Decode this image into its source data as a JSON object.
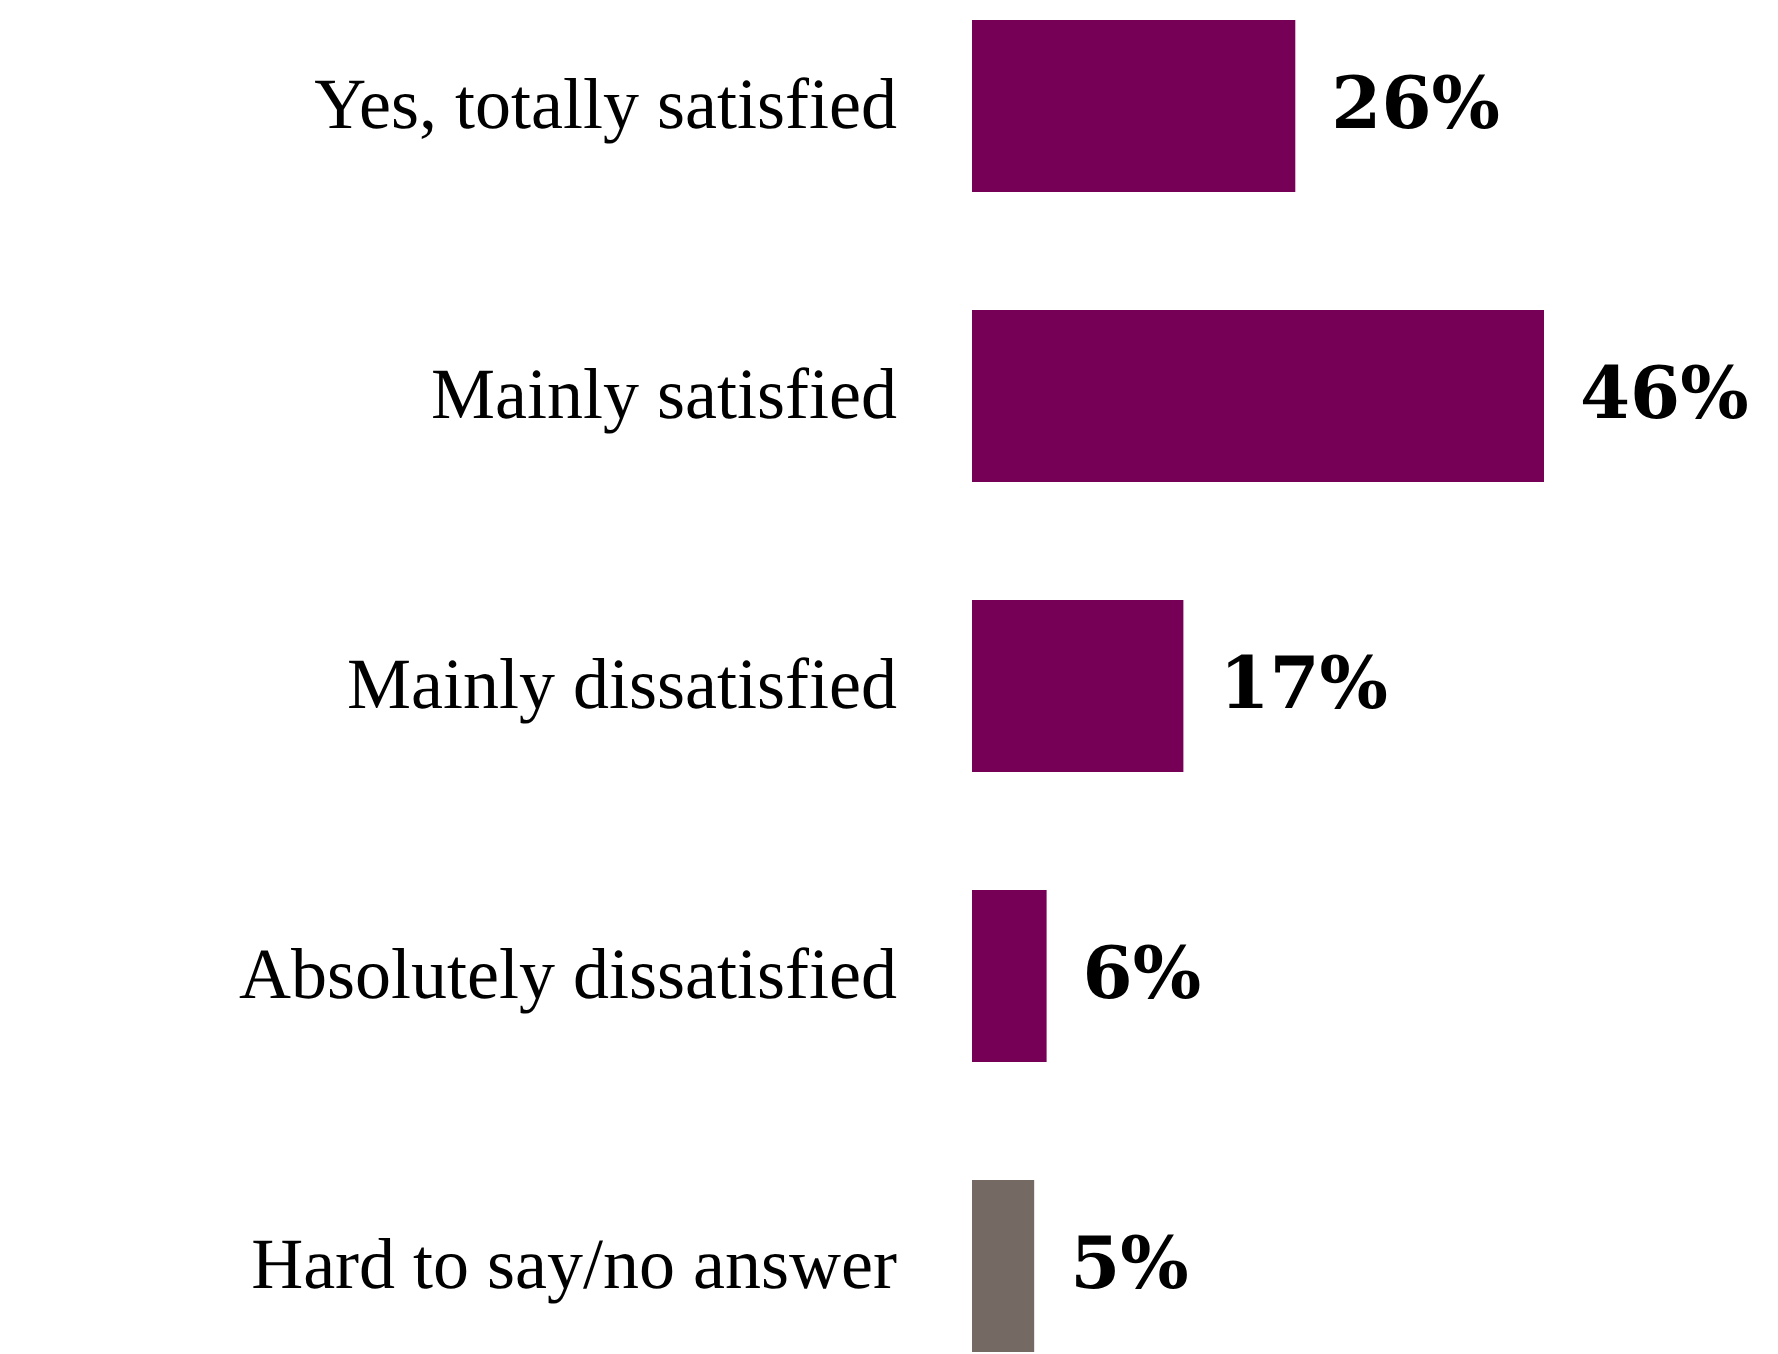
{
  "chart_data": {
    "type": "bar",
    "orientation": "horizontal",
    "categories": [
      "Yes, totally satisfied",
      "Mainly satisfied",
      "Mainly dissatisfied",
      "Absolutely dissatisfied",
      "Hard to say/no answer"
    ],
    "values": [
      26,
      46,
      17,
      6,
      5
    ],
    "colors": [
      "#750056",
      "#750056",
      "#750056",
      "#750056",
      "#756a63"
    ],
    "value_labels": [
      "26%",
      "46%",
      "17%",
      "6%",
      "5%"
    ],
    "legend": false
  }
}
